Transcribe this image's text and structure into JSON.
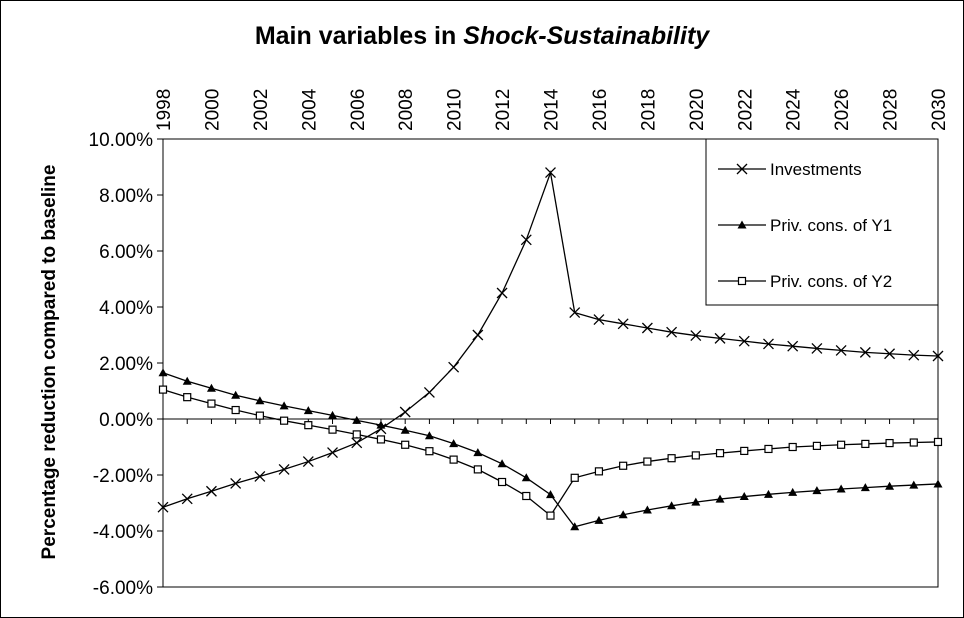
{
  "chart_data": {
    "type": "line",
    "title": [
      "Main variables in",
      "Shock-Sustainability"
    ],
    "y_label": "Percentage reduction compared to baseline",
    "x": [
      1998,
      1999,
      2000,
      2001,
      2002,
      2003,
      2004,
      2005,
      2006,
      2007,
      2008,
      2009,
      2010,
      2011,
      2012,
      2013,
      2014,
      2015,
      2016,
      2017,
      2018,
      2019,
      2020,
      2021,
      2022,
      2023,
      2024,
      2025,
      2026,
      2027,
      2028,
      2029,
      2030
    ],
    "xlim": [
      1998,
      2030
    ],
    "xticks": [
      1998,
      2000,
      2002,
      2004,
      2006,
      2008,
      2010,
      2012,
      2014,
      2016,
      2018,
      2020,
      2022,
      2024,
      2026,
      2028,
      2030
    ],
    "ylim": [
      -6,
      10
    ],
    "yticks": [
      {
        "value": -6,
        "label": "-6.00%"
      },
      {
        "value": -4,
        "label": "-4.00%"
      },
      {
        "value": -2,
        "label": "-2.00%"
      },
      {
        "value": 0,
        "label": "0.00%"
      },
      {
        "value": 2,
        "label": "2.00%"
      },
      {
        "value": 4,
        "label": "4.00%"
      },
      {
        "value": 6,
        "label": "6.00%"
      },
      {
        "value": 8,
        "label": "8.00%"
      },
      {
        "value": 10,
        "label": "10.00%"
      }
    ],
    "legend": "upper right",
    "grid": false,
    "series": [
      {
        "name": "Investments",
        "color": "#000000",
        "marker": "x",
        "values": [
          -3.15,
          -2.85,
          -2.58,
          -2.3,
          -2.05,
          -1.8,
          -1.52,
          -1.2,
          -0.85,
          -0.35,
          0.25,
          0.95,
          1.85,
          3.0,
          4.5,
          6.4,
          8.8,
          3.8,
          3.55,
          3.4,
          3.25,
          3.1,
          2.98,
          2.88,
          2.78,
          2.68,
          2.6,
          2.52,
          2.45,
          2.38,
          2.33,
          2.28,
          2.25
        ]
      },
      {
        "name": "Priv. cons. of Y1",
        "color": "#000000",
        "marker": "triangle",
        "values": [
          1.65,
          1.35,
          1.1,
          0.85,
          0.65,
          0.47,
          0.3,
          0.13,
          -0.05,
          -0.22,
          -0.4,
          -0.6,
          -0.88,
          -1.2,
          -1.6,
          -2.1,
          -2.7,
          -3.85,
          -3.62,
          -3.42,
          -3.25,
          -3.1,
          -2.97,
          -2.86,
          -2.77,
          -2.69,
          -2.62,
          -2.56,
          -2.5,
          -2.45,
          -2.4,
          -2.36,
          -2.32
        ]
      },
      {
        "name": "Priv. cons. of Y2",
        "color": "#000000",
        "marker": "square",
        "values": [
          1.05,
          0.78,
          0.55,
          0.32,
          0.12,
          -0.06,
          -0.22,
          -0.38,
          -0.55,
          -0.73,
          -0.92,
          -1.15,
          -1.45,
          -1.8,
          -2.25,
          -2.75,
          -3.45,
          -2.1,
          -1.87,
          -1.67,
          -1.52,
          -1.4,
          -1.3,
          -1.22,
          -1.14,
          -1.07,
          -1.0,
          -0.96,
          -0.92,
          -0.89,
          -0.86,
          -0.84,
          -0.82
        ]
      }
    ]
  }
}
